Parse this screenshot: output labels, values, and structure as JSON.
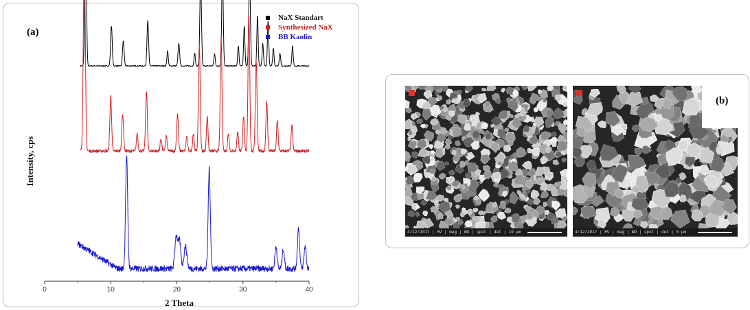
{
  "panel_a": {
    "label": "(a)",
    "chart_data": {
      "type": "line",
      "xlabel": "2 Theta",
      "ylabel": "Intensity, cps",
      "xlim": [
        0,
        40
      ],
      "xticks": [
        "0",
        "10",
        "20",
        "30",
        "40"
      ],
      "legend_position": "top-right",
      "series": [
        {
          "name": "NaX Standart",
          "color": "#000000",
          "baseline": 0.86,
          "noise": 0.002,
          "peaks": [
            {
              "x": 6.2,
              "h": 0.62,
              "w": 0.12
            },
            {
              "x": 10.1,
              "h": 0.16,
              "w": 0.12
            },
            {
              "x": 11.9,
              "h": 0.1,
              "w": 0.12
            },
            {
              "x": 15.6,
              "h": 0.18,
              "w": 0.12
            },
            {
              "x": 18.6,
              "h": 0.06,
              "w": 0.1
            },
            {
              "x": 20.3,
              "h": 0.09,
              "w": 0.12
            },
            {
              "x": 22.7,
              "h": 0.05,
              "w": 0.1
            },
            {
              "x": 23.6,
              "h": 0.36,
              "w": 0.12
            },
            {
              "x": 25.7,
              "h": 0.05,
              "w": 0.1
            },
            {
              "x": 26.9,
              "h": 0.36,
              "w": 0.12
            },
            {
              "x": 29.3,
              "h": 0.08,
              "w": 0.1
            },
            {
              "x": 30.2,
              "h": 0.16,
              "w": 0.1
            },
            {
              "x": 31.0,
              "h": 0.38,
              "w": 0.12
            },
            {
              "x": 32.2,
              "h": 0.2,
              "w": 0.1
            },
            {
              "x": 33.0,
              "h": 0.09,
              "w": 0.1
            },
            {
              "x": 33.8,
              "h": 0.18,
              "w": 0.1
            },
            {
              "x": 34.6,
              "h": 0.07,
              "w": 0.1
            },
            {
              "x": 35.6,
              "h": 0.05,
              "w": 0.1
            },
            {
              "x": 37.5,
              "h": 0.08,
              "w": 0.1
            }
          ]
        },
        {
          "name": "Synthesized NaX",
          "color": "#d42020",
          "baseline": 0.52,
          "noise": 0.006,
          "peaks": [
            {
              "x": 6.0,
              "h": 0.78,
              "w": 0.15
            },
            {
              "x": 10.0,
              "h": 0.22,
              "w": 0.13
            },
            {
              "x": 11.8,
              "h": 0.15,
              "w": 0.13
            },
            {
              "x": 14.0,
              "h": 0.07,
              "w": 0.12
            },
            {
              "x": 15.4,
              "h": 0.24,
              "w": 0.13
            },
            {
              "x": 17.6,
              "h": 0.05,
              "w": 0.12
            },
            {
              "x": 18.4,
              "h": 0.06,
              "w": 0.12
            },
            {
              "x": 20.1,
              "h": 0.15,
              "w": 0.13
            },
            {
              "x": 21.5,
              "h": 0.06,
              "w": 0.12
            },
            {
              "x": 22.5,
              "h": 0.07,
              "w": 0.12
            },
            {
              "x": 23.4,
              "h": 0.42,
              "w": 0.13
            },
            {
              "x": 24.6,
              "h": 0.14,
              "w": 0.12
            },
            {
              "x": 26.7,
              "h": 0.45,
              "w": 0.13
            },
            {
              "x": 27.8,
              "h": 0.07,
              "w": 0.12
            },
            {
              "x": 29.2,
              "h": 0.08,
              "w": 0.12
            },
            {
              "x": 30.1,
              "h": 0.14,
              "w": 0.12
            },
            {
              "x": 30.9,
              "h": 0.55,
              "w": 0.13
            },
            {
              "x": 32.0,
              "h": 0.36,
              "w": 0.13
            },
            {
              "x": 33.6,
              "h": 0.2,
              "w": 0.12
            },
            {
              "x": 35.2,
              "h": 0.12,
              "w": 0.12
            },
            {
              "x": 37.4,
              "h": 0.1,
              "w": 0.12
            }
          ]
        },
        {
          "name": "BB Kaolin",
          "color": "#1a1ad0",
          "baseline": 0.05,
          "noise": 0.012,
          "slope_start": 0.1,
          "peaks": [
            {
              "x": 12.4,
              "h": 0.45,
              "w": 0.16
            },
            {
              "x": 19.9,
              "h": 0.13,
              "w": 0.2
            },
            {
              "x": 20.4,
              "h": 0.11,
              "w": 0.2
            },
            {
              "x": 21.3,
              "h": 0.09,
              "w": 0.22
            },
            {
              "x": 24.9,
              "h": 0.4,
              "w": 0.16
            },
            {
              "x": 35.0,
              "h": 0.09,
              "w": 0.16
            },
            {
              "x": 36.1,
              "h": 0.08,
              "w": 0.16
            },
            {
              "x": 38.4,
              "h": 0.16,
              "w": 0.16
            },
            {
              "x": 39.4,
              "h": 0.09,
              "w": 0.16
            }
          ]
        }
      ]
    }
  },
  "panel_b": {
    "label": "(b)",
    "images": [
      {
        "name": "sem-micrograph-left",
        "marker_color": "#e03030",
        "info_bar": "4/12/2017 | HV | mag | WD | spot | det | 10 μm"
      },
      {
        "name": "sem-micrograph-right",
        "marker_color": "#e03030",
        "info_bar": "4/12/2017 | HV | mag | WD | spot | det | 5 μm"
      }
    ]
  }
}
